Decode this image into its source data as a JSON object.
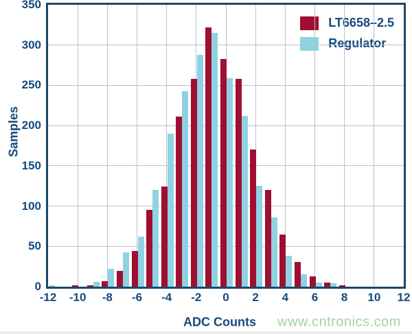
{
  "chart_data": {
    "type": "bar",
    "subtype": "grouped-histogram",
    "title": "",
    "xlabel": "ADC Counts",
    "ylabel": "Samples",
    "categories": [
      -12,
      -11,
      -10,
      -9,
      -8,
      -7,
      -6,
      -5,
      -4,
      -3,
      -2,
      -1,
      0,
      1,
      2,
      3,
      4,
      5,
      6,
      7,
      8
    ],
    "series": [
      {
        "name": "LT6658–2.5",
        "color": "#9e0f31",
        "values": [
          0,
          0,
          2,
          2,
          7,
          20,
          44,
          95,
          124,
          211,
          258,
          322,
          283,
          258,
          170,
          120,
          65,
          31,
          13,
          5,
          2
        ]
      },
      {
        "name": "Regulator",
        "color": "#8fd2e2",
        "values": [
          2,
          0,
          0,
          6,
          22,
          43,
          62,
          120,
          190,
          243,
          288,
          315,
          259,
          212,
          125,
          86,
          38,
          15,
          5,
          4,
          0
        ]
      }
    ],
    "xlim": [
      -12,
      12
    ],
    "ylim": [
      0,
      350
    ],
    "x_ticks": [
      -12,
      -10,
      -8,
      -6,
      -4,
      -2,
      0,
      2,
      4,
      6,
      8,
      10,
      12
    ],
    "y_ticks": [
      0,
      50,
      100,
      150,
      200,
      250,
      300,
      350
    ],
    "grid": true,
    "legend_position": "top-right"
  },
  "watermark": {
    "text": "www.cntronics.com",
    "color": "#a0d4a4"
  },
  "style": {
    "frame_color": "#1b4767",
    "grid_color": "#b3c2d6",
    "text_color": "#15497d",
    "background": "#ffffff"
  }
}
